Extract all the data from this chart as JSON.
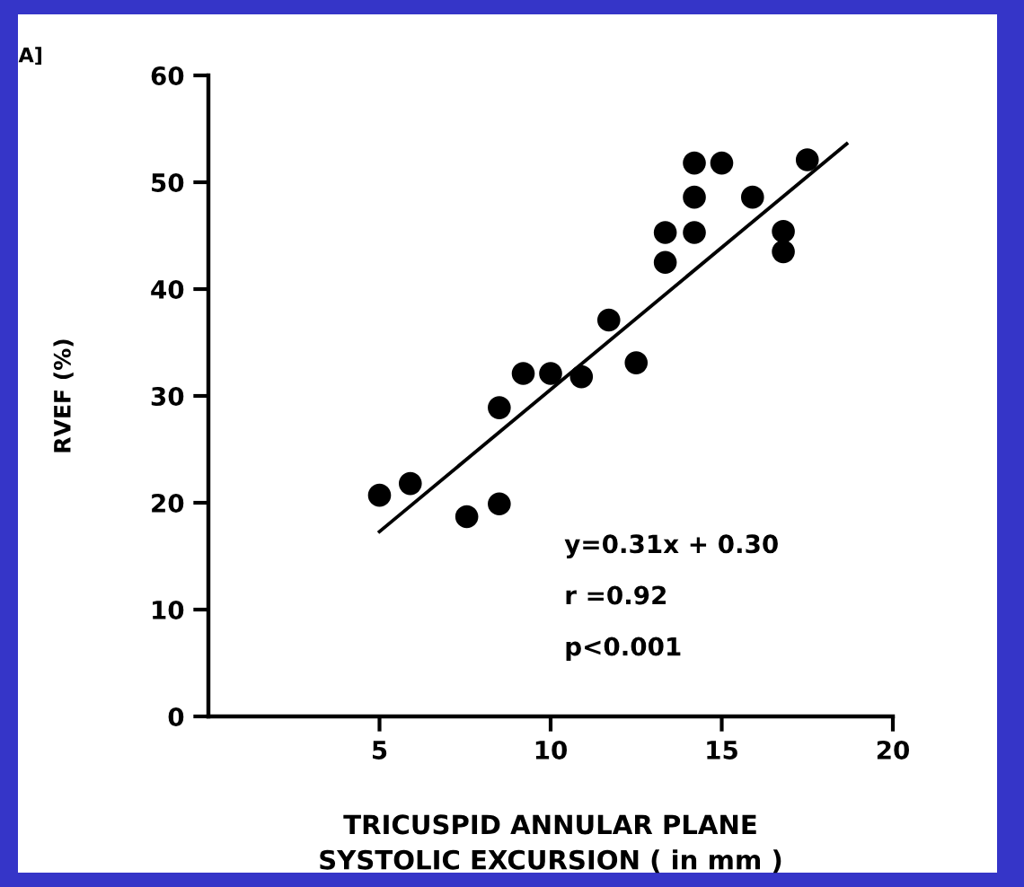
{
  "chart_data": {
    "type": "scatter",
    "xlabel": "TRICUSPID ANNULAR PLANE\nSYSTOLIC EXCURSION ( in mm )",
    "ylabel": "RVEF (%)",
    "xlim": [
      0,
      20
    ],
    "xticks": [
      5,
      10,
      15,
      20
    ],
    "ylim": [
      0,
      60
    ],
    "yticks": [
      0,
      10,
      20,
      30,
      40,
      50,
      60
    ],
    "grid": false,
    "annotations": [
      "A]",
      "y=0.31x + 0.30",
      "r =0.92",
      "p<0.001"
    ],
    "series": [
      {
        "marker": "circle",
        "color": "#000000",
        "x": [
          5.0,
          5.9,
          7.55,
          8.5,
          8.5,
          9.2,
          10.0,
          10.9,
          11.7,
          12.5,
          13.35,
          13.35,
          14.2,
          14.2,
          14.2,
          15.0,
          15.9,
          16.8,
          16.8,
          17.5
        ],
        "values": [
          20.7,
          21.8,
          18.7,
          19.9,
          28.9,
          32.1,
          32.1,
          31.8,
          37.1,
          33.1,
          42.5,
          45.3,
          45.3,
          48.6,
          51.8,
          51.8,
          48.6,
          45.4,
          43.5,
          52.1
        ]
      },
      {
        "type": "line",
        "marker": "none",
        "color": "#000000",
        "x": [
          5.0,
          18.65
        ],
        "values": [
          17.3,
          53.6
        ]
      }
    ]
  }
}
